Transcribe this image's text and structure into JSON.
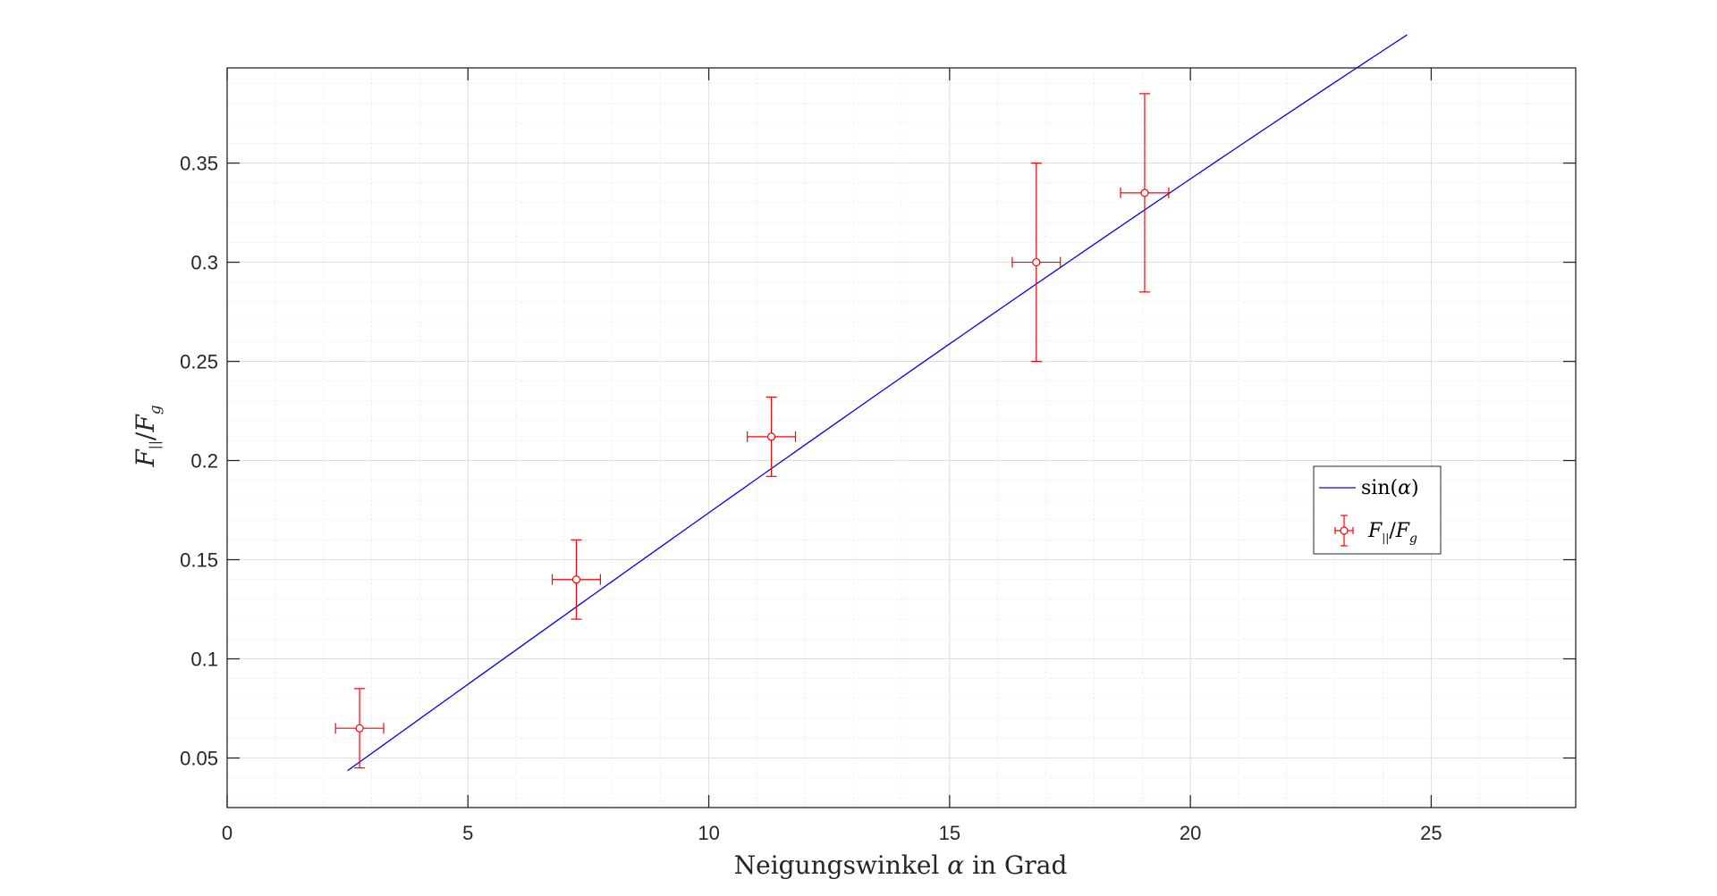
{
  "chart_data": {
    "type": "scatter",
    "title": "",
    "xlabel": {
      "prefix": "Neigungswinkel ",
      "symbol": "α",
      "suffix": " in Grad"
    },
    "ylabel": {
      "num": "F",
      "num_sub": "||",
      "sep": "/",
      "den": "F",
      "den_sub": "g"
    },
    "xlim": [
      0,
      28
    ],
    "ylim": [
      0.025,
      0.398
    ],
    "x_ticks": [
      0,
      5,
      10,
      15,
      20,
      25
    ],
    "x_tick_labels": [
      "0",
      "5",
      "10",
      "15",
      "20",
      "25"
    ],
    "y_ticks": [
      0.05,
      0.1,
      0.15,
      0.2,
      0.25,
      0.3,
      0.35
    ],
    "y_tick_labels": [
      "0.05",
      "0.1",
      "0.15",
      "0.2",
      "0.25",
      "0.3",
      "0.35"
    ],
    "x_minor_step": 1,
    "y_minor_step": 0.01,
    "grid": true,
    "minor_grid": true,
    "legend_placement": "right",
    "series": [
      {
        "kind": "line",
        "name": "sin(α)",
        "color": "#0000ff",
        "function": "sin(deg)",
        "x_range": [
          2.5,
          24.5
        ]
      },
      {
        "kind": "errorbar",
        "name": "F||/Fg",
        "color": "#ff0000",
        "points": [
          {
            "x": 2.75,
            "y": 0.065,
            "xerr": 0.5,
            "yerr": 0.02
          },
          {
            "x": 7.25,
            "y": 0.14,
            "xerr": 0.5,
            "yerr": 0.02
          },
          {
            "x": 11.3,
            "y": 0.212,
            "xerr": 0.5,
            "yerr": 0.02
          },
          {
            "x": 16.8,
            "y": 0.3,
            "xerr": 0.5,
            "yerr": 0.05
          },
          {
            "x": 19.05,
            "y": 0.335,
            "xerr": 0.5,
            "yerr": 0.05
          }
        ]
      }
    ],
    "legend": [
      {
        "label_fn": "sin",
        "label_arg": "α"
      },
      {
        "num": "F",
        "num_sub": "||",
        "sep": "/",
        "den": "F",
        "den_sub": "g"
      }
    ]
  }
}
